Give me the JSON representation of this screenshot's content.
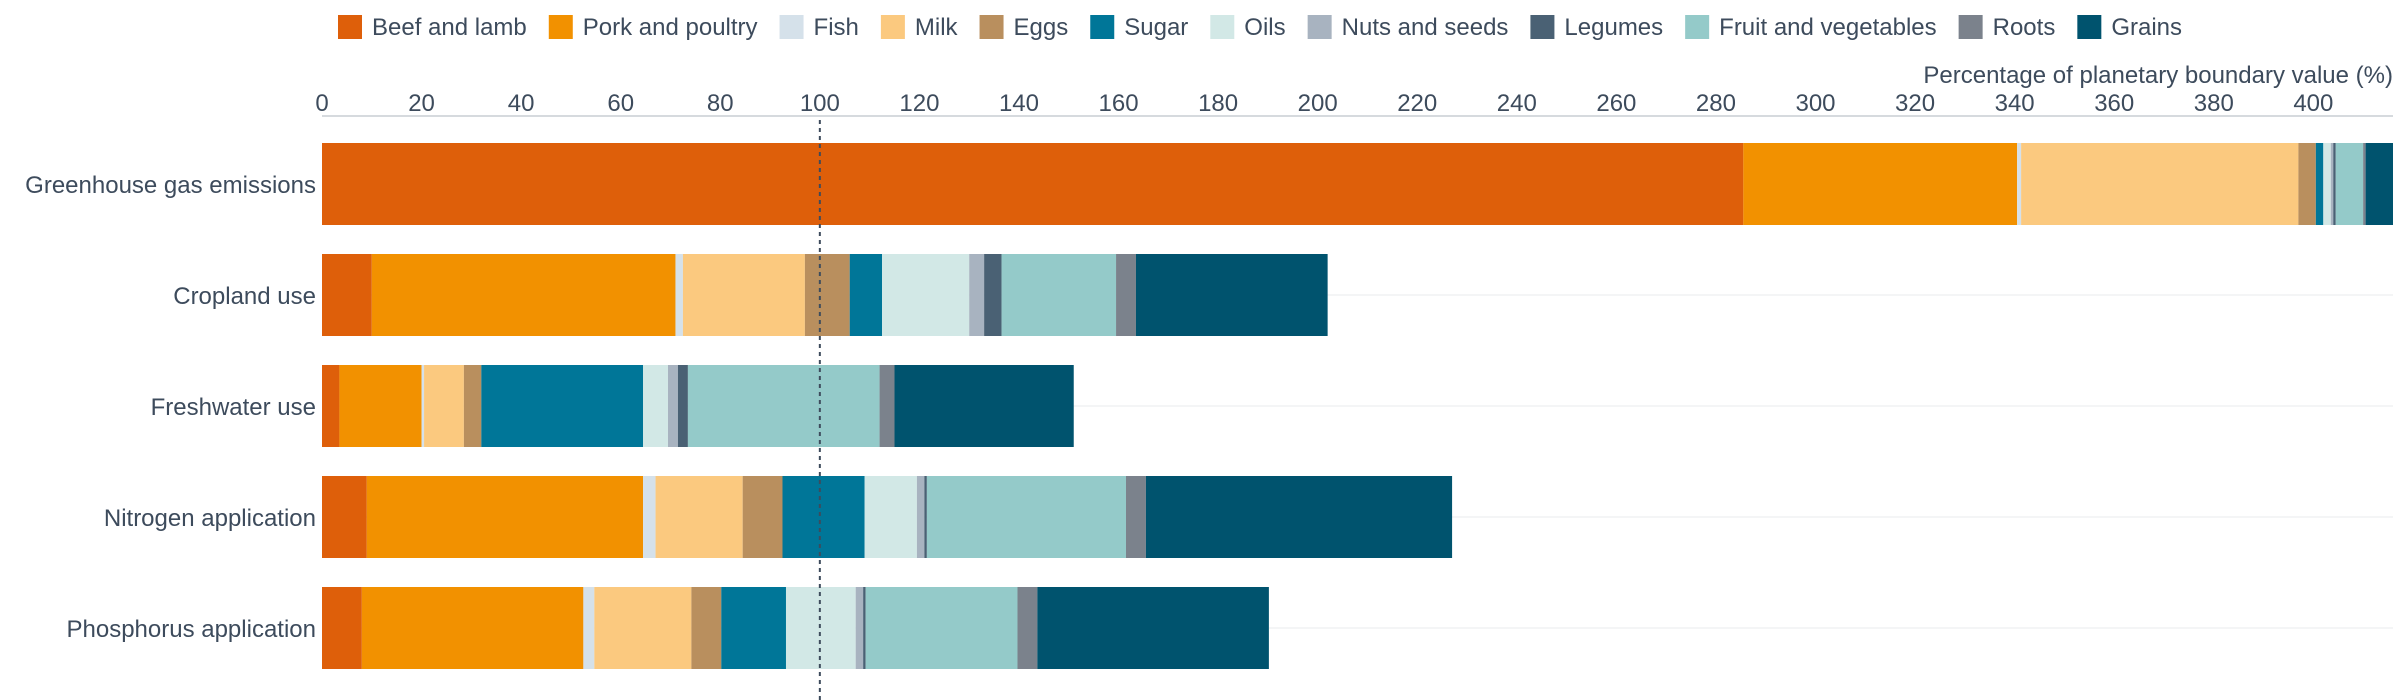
{
  "chart_data": {
    "type": "bar",
    "orientation": "horizontal",
    "stacked": true,
    "xlabel": "Percentage of planetary boundary value (%)",
    "xlim": [
      0,
      416
    ],
    "xticks": [
      0,
      20,
      40,
      60,
      80,
      100,
      120,
      140,
      160,
      180,
      200,
      220,
      240,
      260,
      280,
      300,
      320,
      340,
      360,
      380,
      400
    ],
    "reference_line": 100,
    "legend_position": "top",
    "grid": "horizontal-light",
    "categories": [
      "Greenhouse gas emissions",
      "Cropland use",
      "Freshwater use",
      "Nitrogen application",
      "Phosphorus application"
    ],
    "series": [
      {
        "name": "Beef and lamb",
        "color": "#de5f0a",
        "values": [
          285.5,
          10,
          3.5,
          9,
          8
        ]
      },
      {
        "name": "Pork and poultry",
        "color": "#f29100",
        "values": [
          55,
          61,
          16.5,
          55.5,
          44.5
        ]
      },
      {
        "name": "Fish",
        "color": "#d5e1ea",
        "values": [
          0.8,
          1.5,
          0.5,
          2.5,
          2.2
        ]
      },
      {
        "name": "Milk",
        "color": "#fbc97f",
        "values": [
          55.7,
          24.5,
          8,
          17.5,
          19.5
        ]
      },
      {
        "name": "Eggs",
        "color": "#b98f5e",
        "values": [
          3.5,
          9,
          3.5,
          8,
          6
        ]
      },
      {
        "name": "Sugar",
        "color": "#007698",
        "values": [
          1.5,
          6.5,
          32.5,
          16.5,
          13
        ]
      },
      {
        "name": "Oils",
        "color": "#d2e8e6",
        "values": [
          1.5,
          17.5,
          5,
          10.5,
          14
        ]
      },
      {
        "name": "Nuts and seeds",
        "color": "#a8b3c0",
        "values": [
          0.5,
          3,
          2,
          1.5,
          1.5
        ]
      },
      {
        "name": "Legumes",
        "color": "#4a6174",
        "values": [
          0.5,
          3.5,
          2,
          0.5,
          0.5
        ]
      },
      {
        "name": "Fruit and vegetables",
        "color": "#94cac9",
        "values": [
          5.5,
          23,
          38.5,
          40,
          30.5
        ]
      },
      {
        "name": "Roots",
        "color": "#7b828c",
        "values": [
          0.5,
          4,
          3,
          4,
          4
        ]
      },
      {
        "name": "Grains",
        "color": "#00536e",
        "values": [
          5.5,
          38.5,
          36,
          61.5,
          46.5
        ]
      }
    ]
  }
}
